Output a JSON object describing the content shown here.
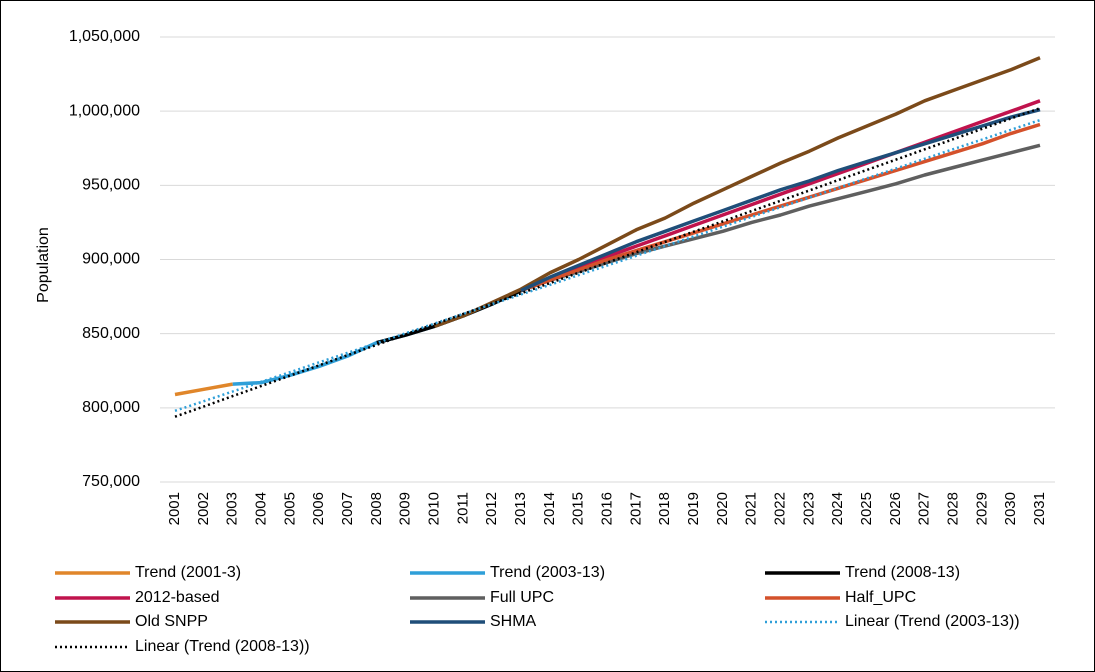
{
  "chart_data": {
    "type": "line",
    "ylabel": "Population",
    "categories": [
      "2001",
      "2002",
      "2003",
      "2004",
      "2005",
      "2006",
      "2007",
      "2008",
      "2009",
      "2010",
      "2011",
      "2012",
      "2013",
      "2014",
      "2015",
      "2016",
      "2017",
      "2018",
      "2019",
      "2020",
      "2021",
      "2022",
      "2023",
      "2024",
      "2025",
      "2026",
      "2027",
      "2028",
      "2029",
      "2030",
      "2031"
    ],
    "ylim": [
      750000,
      1050000
    ],
    "yticks": [
      {
        "value": 750000,
        "label": "750,000"
      },
      {
        "value": 800000,
        "label": "800,000"
      },
      {
        "value": 850000,
        "label": "850,000"
      },
      {
        "value": 900000,
        "label": "900,000"
      },
      {
        "value": 950000,
        "label": "950,000"
      },
      {
        "value": 1000000,
        "label": "1,000,000"
      },
      {
        "value": 1050000,
        "label": "1,050,000"
      }
    ],
    "grid": true,
    "series": [
      {
        "name": "Trend (2001-3)",
        "color": "#e0862a",
        "values": [
          809000,
          812500,
          816000,
          null,
          null,
          null,
          null,
          null,
          null,
          null,
          null,
          null,
          null,
          null,
          null,
          null,
          null,
          null,
          null,
          null,
          null,
          null,
          null,
          null,
          null,
          null,
          null,
          null,
          null,
          null,
          null
        ]
      },
      {
        "name": "Trend (2003-13)",
        "color": "#2f9fd8",
        "values": [
          null,
          null,
          816000,
          817000,
          822000,
          828000,
          835000,
          844000,
          849000,
          855000,
          862000,
          870000,
          879000,
          null,
          null,
          null,
          null,
          null,
          null,
          null,
          null,
          null,
          null,
          null,
          null,
          null,
          null,
          null,
          null,
          null,
          null
        ]
      },
      {
        "name": "Trend (2008-13)",
        "color": "#000000",
        "values": [
          null,
          null,
          null,
          null,
          null,
          null,
          null,
          844000,
          849000,
          855000,
          862000,
          870000,
          879000,
          null,
          null,
          null,
          null,
          null,
          null,
          null,
          null,
          null,
          null,
          null,
          null,
          null,
          null,
          null,
          null,
          null,
          null
        ]
      },
      {
        "name": "2012-based",
        "color": "#c0134d",
        "values": [
          null,
          null,
          null,
          null,
          null,
          null,
          null,
          null,
          null,
          null,
          null,
          null,
          879000,
          887000,
          894000,
          902000,
          909000,
          916000,
          923000,
          930000,
          937000,
          944000,
          951000,
          958000,
          965000,
          972000,
          979000,
          986000,
          993000,
          1000000,
          1007000
        ]
      },
      {
        "name": "Full UPC",
        "color": "#5f5f5f",
        "values": [
          null,
          null,
          null,
          null,
          null,
          null,
          null,
          null,
          null,
          null,
          null,
          null,
          879000,
          886000,
          892000,
          898000,
          904000,
          909000,
          914000,
          919000,
          925000,
          930000,
          936000,
          941000,
          946000,
          951000,
          957000,
          962000,
          967000,
          972000,
          977000
        ]
      },
      {
        "name": "Half_UPC",
        "color": "#d4512b",
        "values": [
          null,
          null,
          null,
          null,
          null,
          null,
          null,
          null,
          null,
          null,
          null,
          null,
          879000,
          886000,
          893000,
          900000,
          906000,
          912000,
          918000,
          924000,
          930000,
          936000,
          942000,
          948000,
          954000,
          960000,
          966000,
          972000,
          978000,
          985000,
          991000
        ]
      },
      {
        "name": "Old SNPP",
        "color": "#7b4a1a",
        "values": [
          null,
          null,
          null,
          null,
          null,
          null,
          null,
          null,
          null,
          855000,
          862000,
          871000,
          880000,
          891000,
          900000,
          910000,
          920000,
          928000,
          938000,
          947000,
          956000,
          965000,
          973000,
          982000,
          990000,
          998000,
          1007000,
          1014000,
          1021000,
          1028000,
          1036000
        ]
      },
      {
        "name": "SHMA",
        "color": "#1f4e79",
        "values": [
          null,
          null,
          null,
          null,
          null,
          null,
          null,
          null,
          null,
          null,
          null,
          null,
          879000,
          888000,
          896000,
          904000,
          912000,
          919000,
          926000,
          933000,
          940000,
          947000,
          953000,
          960000,
          966000,
          972000,
          978000,
          984000,
          990000,
          996000,
          1001000
        ]
      },
      {
        "name": "Linear (Trend (2003-13))",
        "color": "#2f9fd8",
        "line_style": "dotted",
        "values": [
          798000,
          804500,
          811000,
          817600,
          824100,
          830700,
          837200,
          843700,
          850300,
          856800,
          863300,
          869900,
          876400,
          882900,
          889500,
          896000,
          902500,
          909100,
          915600,
          922100,
          928700,
          935200,
          941700,
          948300,
          954800,
          961300,
          967900,
          974400,
          980900,
          987500,
          994000
        ]
      },
      {
        "name": "Linear (Trend (2008-13))",
        "color": "#000000",
        "line_style": "dotted",
        "values": [
          794000,
          800900,
          807900,
          814800,
          821700,
          828700,
          835600,
          842500,
          849500,
          856400,
          863300,
          870300,
          877200,
          884100,
          891100,
          898000,
          904900,
          911900,
          918800,
          925700,
          932700,
          939600,
          946500,
          953500,
          960400,
          967300,
          974300,
          981200,
          988100,
          995100,
          1002000
        ]
      }
    ]
  }
}
